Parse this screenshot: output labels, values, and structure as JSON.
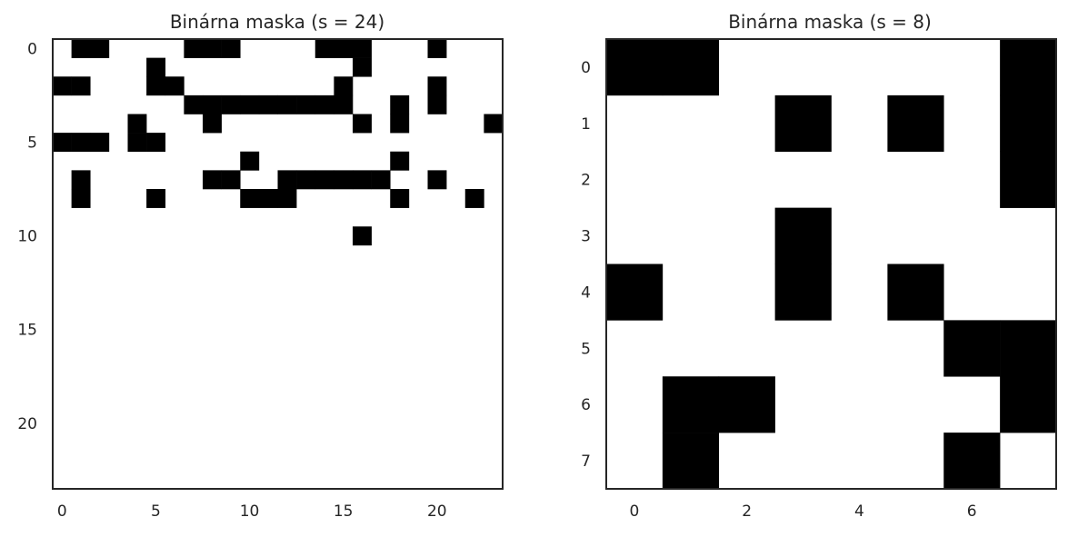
{
  "chart_data": [
    {
      "type": "heatmap",
      "title": "Binárna maska (s = 24)",
      "rows": 24,
      "cols": 24,
      "colormap": {
        "0": "#000000",
        "1": "#ffffff"
      },
      "xticks": [
        0,
        5,
        10,
        15,
        20
      ],
      "yticks": [
        0,
        5,
        10,
        15,
        20
      ],
      "grid": false,
      "matrix": [
        "100111100011110001110111",
        "111110111111111101111111",
        "001110011111111011110111",
        "111111100000000011010111",
        "111101110111111101011110",
        "000100111111111111111111",
        "111111111101111111011111",
        "101111110011000000110111",
        "101110111100011111011101",
        "111111111111111111111111",
        "111111111111111101111111",
        "111111111111111111111111",
        "111111111111111111111111",
        "111111111111111111111111",
        "111111111111111111111111",
        "111111111111111111111111",
        "111111111111111111111111",
        "111111111111111111111111",
        "111111111111111111111111",
        "111111111111111111111111",
        "111111111111111111111111",
        "111111111111111111111111",
        "111111111111111111111111",
        "111111111111111111111111"
      ],
      "matrix_exact": [
        "100111100011110001110111",
        "111110111111111101111111",
        "001110011111111011110111",
        "111111100000000011010111",
        "111101110111111101011110",
        "000100111111111111111111",
        "111111111101111111011111",
        "101111110011000000110111",
        "101110111100011111011101",
        "111111111111111111111111",
        "111111111111111101111111",
        "111111111111111111111111",
        "111111111111111111111111",
        "111111111111111111111111",
        "111111111111111111111111",
        "111111111111111111111111",
        "111111111111111111111111",
        "111111111111111111111111",
        "111111111111111111111111",
        "111111111111111111111111",
        "111111111111111111111111",
        "111111111111111111111111",
        "111111111111111111111111",
        "111111111111111111111111"
      ]
    },
    {
      "type": "heatmap",
      "title": "Binárna maska (s = 8)",
      "rows": 8,
      "cols": 8,
      "colormap": {
        "0": "#000000",
        "1": "#ffffff"
      },
      "xticks": [
        0,
        2,
        4,
        6
      ],
      "yticks": [
        0,
        1,
        2,
        3,
        4,
        5,
        6,
        7
      ],
      "grid": false,
      "matrix": [
        "00111110",
        "11101010",
        "11111110",
        "11101111",
        "01101011",
        "11111100",
        "10011110",
        "10111101"
      ]
    }
  ]
}
